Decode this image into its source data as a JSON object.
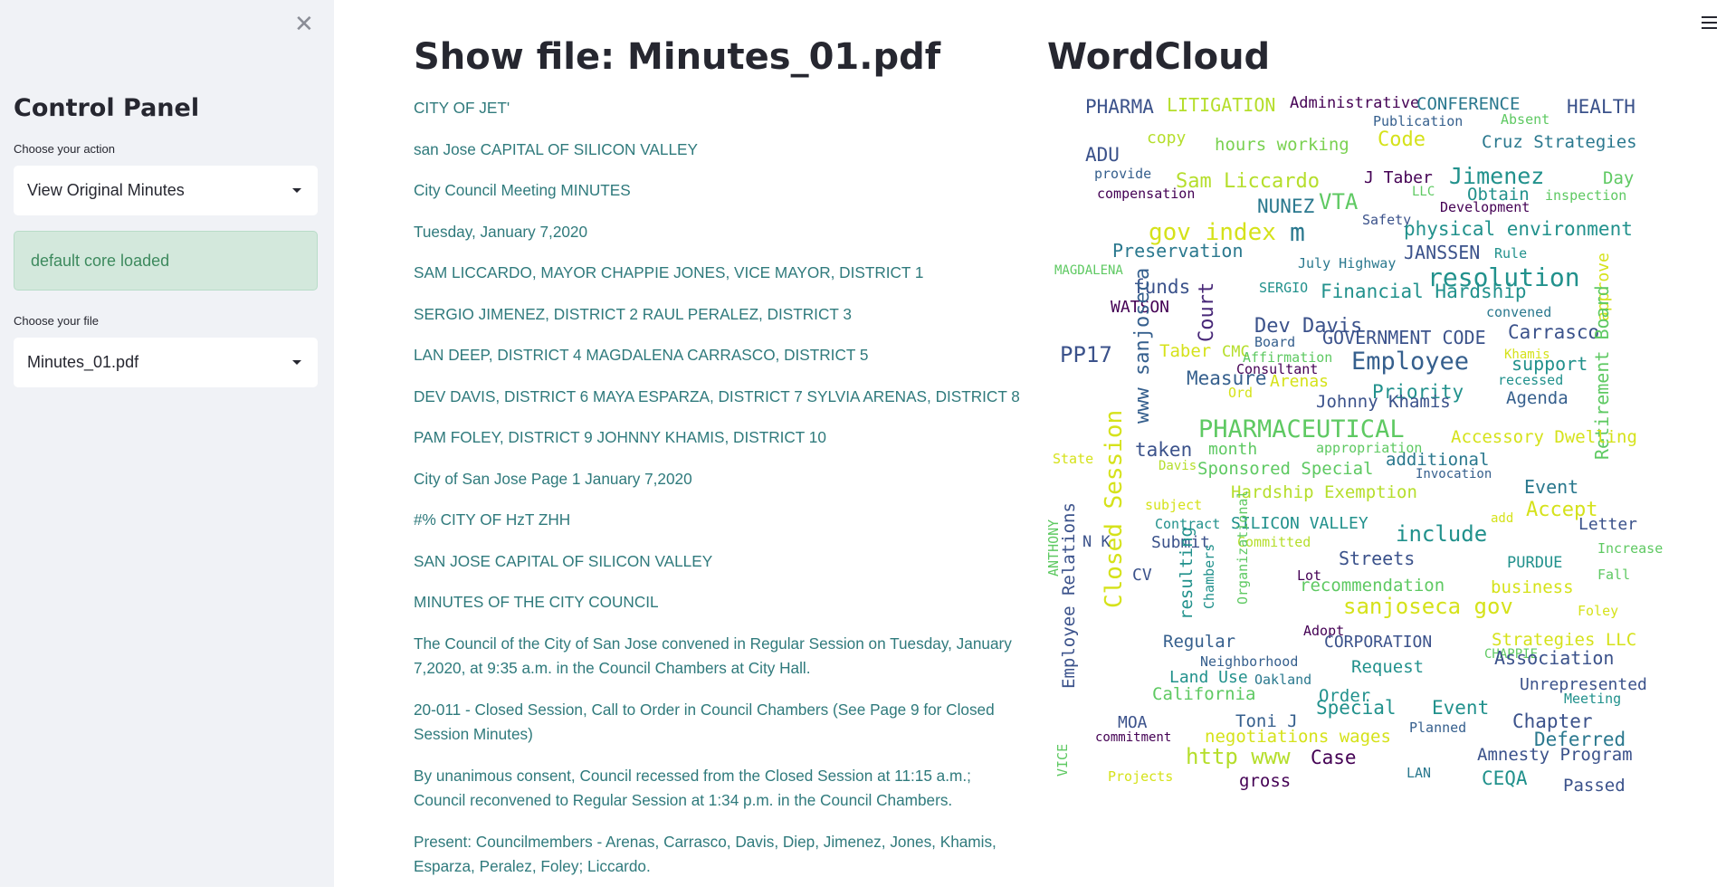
{
  "sidebar": {
    "close_icon": "close-icon",
    "title": "Control Panel",
    "action_label": "Choose your action",
    "action_value": "View Original Minutes",
    "alert_text": "default core loaded",
    "file_label": "Choose your file",
    "file_value": "Minutes_01.pdf"
  },
  "header": {
    "menu_icon": "hamburger-menu-icon"
  },
  "main": {
    "doc_title": "Show file: Minutes_01.pdf",
    "wordcloud_title": "WordCloud",
    "paragraphs": [
      "CITY OF JET'",
      "san Jose CAPITAL OF SILICON VALLEY",
      "City Council Meeting MINUTES",
      "Tuesday, January 7,2020",
      "SAM LICCARDO, MAYOR CHAPPIE JONES, VICE MAYOR, DISTRICT 1",
      "SERGIO JIMENEZ, DISTRICT 2 RAUL PERALEZ, DISTRICT 3",
      "LAN DEEP, DISTRICT 4 MAGDALENA CARRASCO, DISTRICT 5",
      "DEV DAVIS, DISTRICT 6 MAYA ESPARZA, DISTRICT 7 SYLVIA ARENAS, DISTRICT 8",
      "PAM FOLEY, DISTRICT 9 JOHNNY KHAMIS, DISTRICT 10",
      "City of San Jose Page 1 January 7,2020",
      "#% CITY OF HzT ZHH",
      "SAN JOSE CAPITAL OF SILICON VALLEY",
      "MINUTES OF THE CITY COUNCIL",
      "The Council of the City of San Jose convened in Regular Session on Tuesday, January 7,2020, at 9:35 a.m. in the Council Chambers at City Hall.",
      "20-011 - Closed Session, Call to Order in Council Chambers (See Page 9 for Closed Session Minutes)",
      "By unanimous consent, Council recessed from the Closed Session at 11:15 a.m.; Council reconvened to Regular Session at 1:34 p.m. in the Council Chambers.",
      "Present: Councilmembers - Arenas, Carrasco, Davis, Diep, Jimenez, Jones, Khamis, Esparza, Peralez, Foley; Liccardo."
    ]
  },
  "wordcloud": {
    "palette": [
      "#440154",
      "#3b528b",
      "#21918c",
      "#5ec962",
      "#fde725",
      "#355f8d",
      "#2a788e",
      "#7ad151",
      "#b5de2b",
      "#482878"
    ],
    "words": [
      {
        "t": "PHARMA",
        "c": "#3b528b"
      },
      {
        "t": "LITIGATION",
        "c": "#b5de2b"
      },
      {
        "t": "Administrative",
        "c": "#440154"
      },
      {
        "t": "CONFERENCE",
        "c": "#2a788e"
      },
      {
        "t": "HEALTH",
        "c": "#3b528b"
      },
      {
        "t": "Publication",
        "c": "#355f8d"
      },
      {
        "t": "Absent",
        "c": "#5ec962"
      },
      {
        "t": "copy",
        "c": "#b5de2b"
      },
      {
        "t": "hours working",
        "c": "#7ad151"
      },
      {
        "t": "Code",
        "c": "#d5e21a"
      },
      {
        "t": "Cruz Strategies",
        "c": "#2a788e"
      },
      {
        "t": "ADU",
        "c": "#3b528b"
      },
      {
        "t": "provide",
        "c": "#355f8d"
      },
      {
        "t": "Sam Liccardo",
        "c": "#b5de2b"
      },
      {
        "t": "J Taber",
        "c": "#440154"
      },
      {
        "t": "Jimenez",
        "c": "#21918c"
      },
      {
        "t": "Day",
        "c": "#5ec962"
      },
      {
        "t": "compensation",
        "c": "#440154"
      },
      {
        "t": "LLC",
        "c": "#5ec962"
      },
      {
        "t": "Obtain",
        "c": "#21918c"
      },
      {
        "t": "inspection",
        "c": "#5ec962"
      },
      {
        "t": "NUNEZ",
        "c": "#2a788e"
      },
      {
        "t": "VTA",
        "c": "#5ec962"
      },
      {
        "t": "Development",
        "c": "#440154"
      },
      {
        "t": "Safety",
        "c": "#3b528b"
      },
      {
        "t": "gov index",
        "c": "#d5e21a"
      },
      {
        "t": "m",
        "c": "#2a788e"
      },
      {
        "t": "physical environment",
        "c": "#21918c"
      },
      {
        "t": "Preservation",
        "c": "#2a788e"
      },
      {
        "t": "JANSSEN",
        "c": "#3b528b"
      },
      {
        "t": "Rule",
        "c": "#21918c"
      },
      {
        "t": "approve",
        "c": "#d5e21a"
      },
      {
        "t": "July Highway",
        "c": "#2a788e"
      },
      {
        "t": "resolution",
        "c": "#21918c"
      },
      {
        "t": "MAGDALENA",
        "c": "#5ec962"
      },
      {
        "t": "funds",
        "c": "#3b528b"
      },
      {
        "t": "SERGIO",
        "c": "#21918c"
      },
      {
        "t": "Financial Hardship",
        "c": "#21918c"
      },
      {
        "t": "WATSON",
        "c": "#440154"
      },
      {
        "t": "Court",
        "c": "#482878"
      },
      {
        "t": "convened",
        "c": "#2a788e"
      },
      {
        "t": "Dev Davis",
        "c": "#3b528b"
      },
      {
        "t": "Carrasco",
        "c": "#3b528b"
      },
      {
        "t": "www sanjoseca",
        "c": "#355f8d"
      },
      {
        "t": "Board",
        "c": "#355f8d"
      },
      {
        "t": "GOVERNMENT CODE",
        "c": "#3b528b"
      },
      {
        "t": "PP17",
        "c": "#3b528b"
      },
      {
        "t": "Taber",
        "c": "#d5e21a"
      },
      {
        "t": "CMC",
        "c": "#b5de2b"
      },
      {
        "t": "Affirmation",
        "c": "#5ec962"
      },
      {
        "t": "Khamis",
        "c": "#d5e21a"
      },
      {
        "t": "Employee",
        "c": "#355f8d"
      },
      {
        "t": "support",
        "c": "#21918c"
      },
      {
        "t": "Retirement Board",
        "c": "#5ec962"
      },
      {
        "t": "Consultant",
        "c": "#440154"
      },
      {
        "t": "Measure",
        "c": "#355f8d"
      },
      {
        "t": "Arenas",
        "c": "#d5e21a"
      },
      {
        "t": "recessed",
        "c": "#21918c"
      },
      {
        "t": "Ord",
        "c": "#d5e21a"
      },
      {
        "t": "Priority",
        "c": "#21918c"
      },
      {
        "t": "Agenda",
        "c": "#355f8d"
      },
      {
        "t": "Johnny Khamis",
        "c": "#3b528b"
      },
      {
        "t": "PHARMACEUTICAL",
        "c": "#5ec962"
      },
      {
        "t": "Accessory Dwelling",
        "c": "#d5e21a"
      },
      {
        "t": "taken",
        "c": "#3b528b"
      },
      {
        "t": "month",
        "c": "#5ec962"
      },
      {
        "t": "appropriation",
        "c": "#5ec962"
      },
      {
        "t": "State",
        "c": "#d5e21a"
      },
      {
        "t": "additional",
        "c": "#2a788e"
      },
      {
        "t": "Davis",
        "c": "#b5de2b"
      },
      {
        "t": "Sponsored Special",
        "c": "#5ec962"
      },
      {
        "t": "Invocation",
        "c": "#355f8d"
      },
      {
        "t": "Event",
        "c": "#2a788e"
      },
      {
        "t": "Hardship Exemption",
        "c": "#b5de2b"
      },
      {
        "t": "subject",
        "c": "#d5e21a"
      },
      {
        "t": "Accept",
        "c": "#d5e21a"
      },
      {
        "t": "add",
        "c": "#d5e21a"
      },
      {
        "t": "Letter",
        "c": "#3b528b"
      },
      {
        "t": "Closed Session",
        "c": "#d5e21a"
      },
      {
        "t": "Contract",
        "c": "#21918c"
      },
      {
        "t": "SILICON VALLEY",
        "c": "#21918c"
      },
      {
        "t": "ANTHONY",
        "c": "#5ec962"
      },
      {
        "t": "N K",
        "c": "#3b528b"
      },
      {
        "t": "Submit",
        "c": "#3b528b"
      },
      {
        "t": "Committed",
        "c": "#b5de2b"
      },
      {
        "t": "include",
        "c": "#21918c"
      },
      {
        "t": "Increase",
        "c": "#5ec962"
      },
      {
        "t": "Streets",
        "c": "#3b528b"
      },
      {
        "t": "PURDUE",
        "c": "#21918c"
      },
      {
        "t": "CV",
        "c": "#3b528b"
      },
      {
        "t": "Lot",
        "c": "#440154"
      },
      {
        "t": "recommendation",
        "c": "#5ec962"
      },
      {
        "t": "business",
        "c": "#d5e21a"
      },
      {
        "t": "Fall",
        "c": "#5ec962"
      },
      {
        "t": "resulting",
        "c": "#21918c"
      },
      {
        "t": "Chambers",
        "c": "#21918c"
      },
      {
        "t": "Organizational",
        "c": "#5ec962"
      },
      {
        "t": "sanjoseca gov",
        "c": "#d5e21a"
      },
      {
        "t": "Foley",
        "c": "#d5e21a"
      },
      {
        "t": "Employee Relations",
        "c": "#3b528b"
      },
      {
        "t": "Adopt",
        "c": "#440154"
      },
      {
        "t": "Regular",
        "c": "#355f8d"
      },
      {
        "t": "CORPORATION",
        "c": "#3b528b"
      },
      {
        "t": "Strategies LLC",
        "c": "#d5e21a"
      },
      {
        "t": "CHAPPIE",
        "c": "#5ec962"
      },
      {
        "t": "Association",
        "c": "#3b528b"
      },
      {
        "t": "Neighborhood",
        "c": "#355f8d"
      },
      {
        "t": "Request",
        "c": "#21918c"
      },
      {
        "t": "Land Use",
        "c": "#21918c"
      },
      {
        "t": "Oakland",
        "c": "#2a788e"
      },
      {
        "t": "Unrepresented",
        "c": "#3b528b"
      },
      {
        "t": "California",
        "c": "#5ec962"
      },
      {
        "t": "Order",
        "c": "#21918c"
      },
      {
        "t": "Meeting",
        "c": "#21918c"
      },
      {
        "t": "Special",
        "c": "#21918c"
      },
      {
        "t": "Event",
        "c": "#21918c"
      },
      {
        "t": "MOA",
        "c": "#3b528b"
      },
      {
        "t": "Toni J",
        "c": "#355f8d"
      },
      {
        "t": "Planned",
        "c": "#355f8d"
      },
      {
        "t": "Chapter",
        "c": "#3b528b"
      },
      {
        "t": "commitment",
        "c": "#440154"
      },
      {
        "t": "negotiations wages",
        "c": "#d5e21a"
      },
      {
        "t": "Deferred",
        "c": "#2a788e"
      },
      {
        "t": "http www",
        "c": "#b5de2b"
      },
      {
        "t": "Case",
        "c": "#440154"
      },
      {
        "t": "Amnesty Program",
        "c": "#3b528b"
      },
      {
        "t": "VICE",
        "c": "#5ec962"
      },
      {
        "t": "Projects",
        "c": "#d5e21a"
      },
      {
        "t": "LAN",
        "c": "#2a788e"
      },
      {
        "t": "CEQA",
        "c": "#21918c"
      },
      {
        "t": "gross",
        "c": "#440154"
      },
      {
        "t": "Passed",
        "c": "#3b528b"
      }
    ]
  }
}
